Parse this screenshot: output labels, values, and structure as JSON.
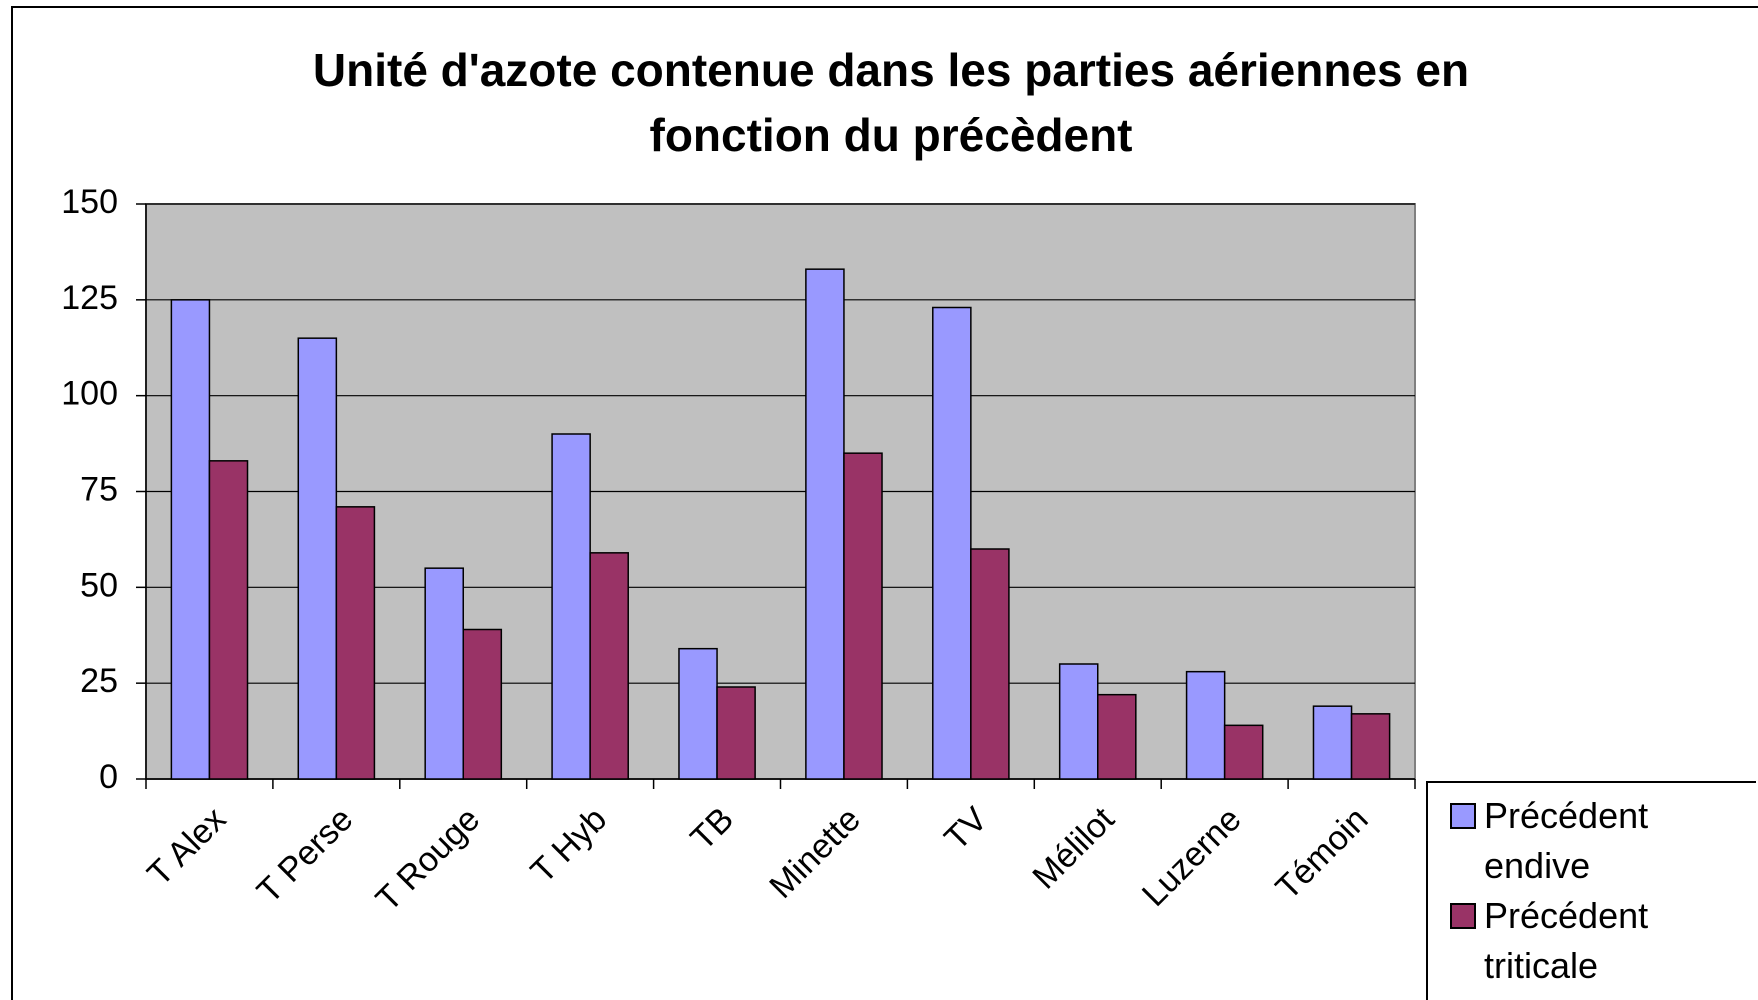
{
  "chart_data": {
    "type": "bar",
    "title": "Unité d'azote contenue dans les parties aériennes en fonction du précèdent",
    "categories": [
      "T Alex",
      "T Perse",
      "T Rouge",
      "T Hyb",
      "TB",
      "Minette",
      "TV",
      "Mélilot",
      "Luzerne",
      "Témoin"
    ],
    "series": [
      {
        "name": "Précédent endive",
        "color": "#9999ff",
        "values": [
          125,
          115,
          55,
          90,
          34,
          133,
          123,
          30,
          28,
          19
        ]
      },
      {
        "name": "Précédent triticale",
        "color": "#993366",
        "values": [
          83,
          71,
          39,
          59,
          24,
          85,
          60,
          22,
          14,
          17
        ]
      }
    ],
    "ylim": [
      0,
      150
    ],
    "yticks": [
      0,
      25,
      50,
      75,
      100,
      125,
      150
    ],
    "grid": true,
    "legend": "bottom-right"
  }
}
